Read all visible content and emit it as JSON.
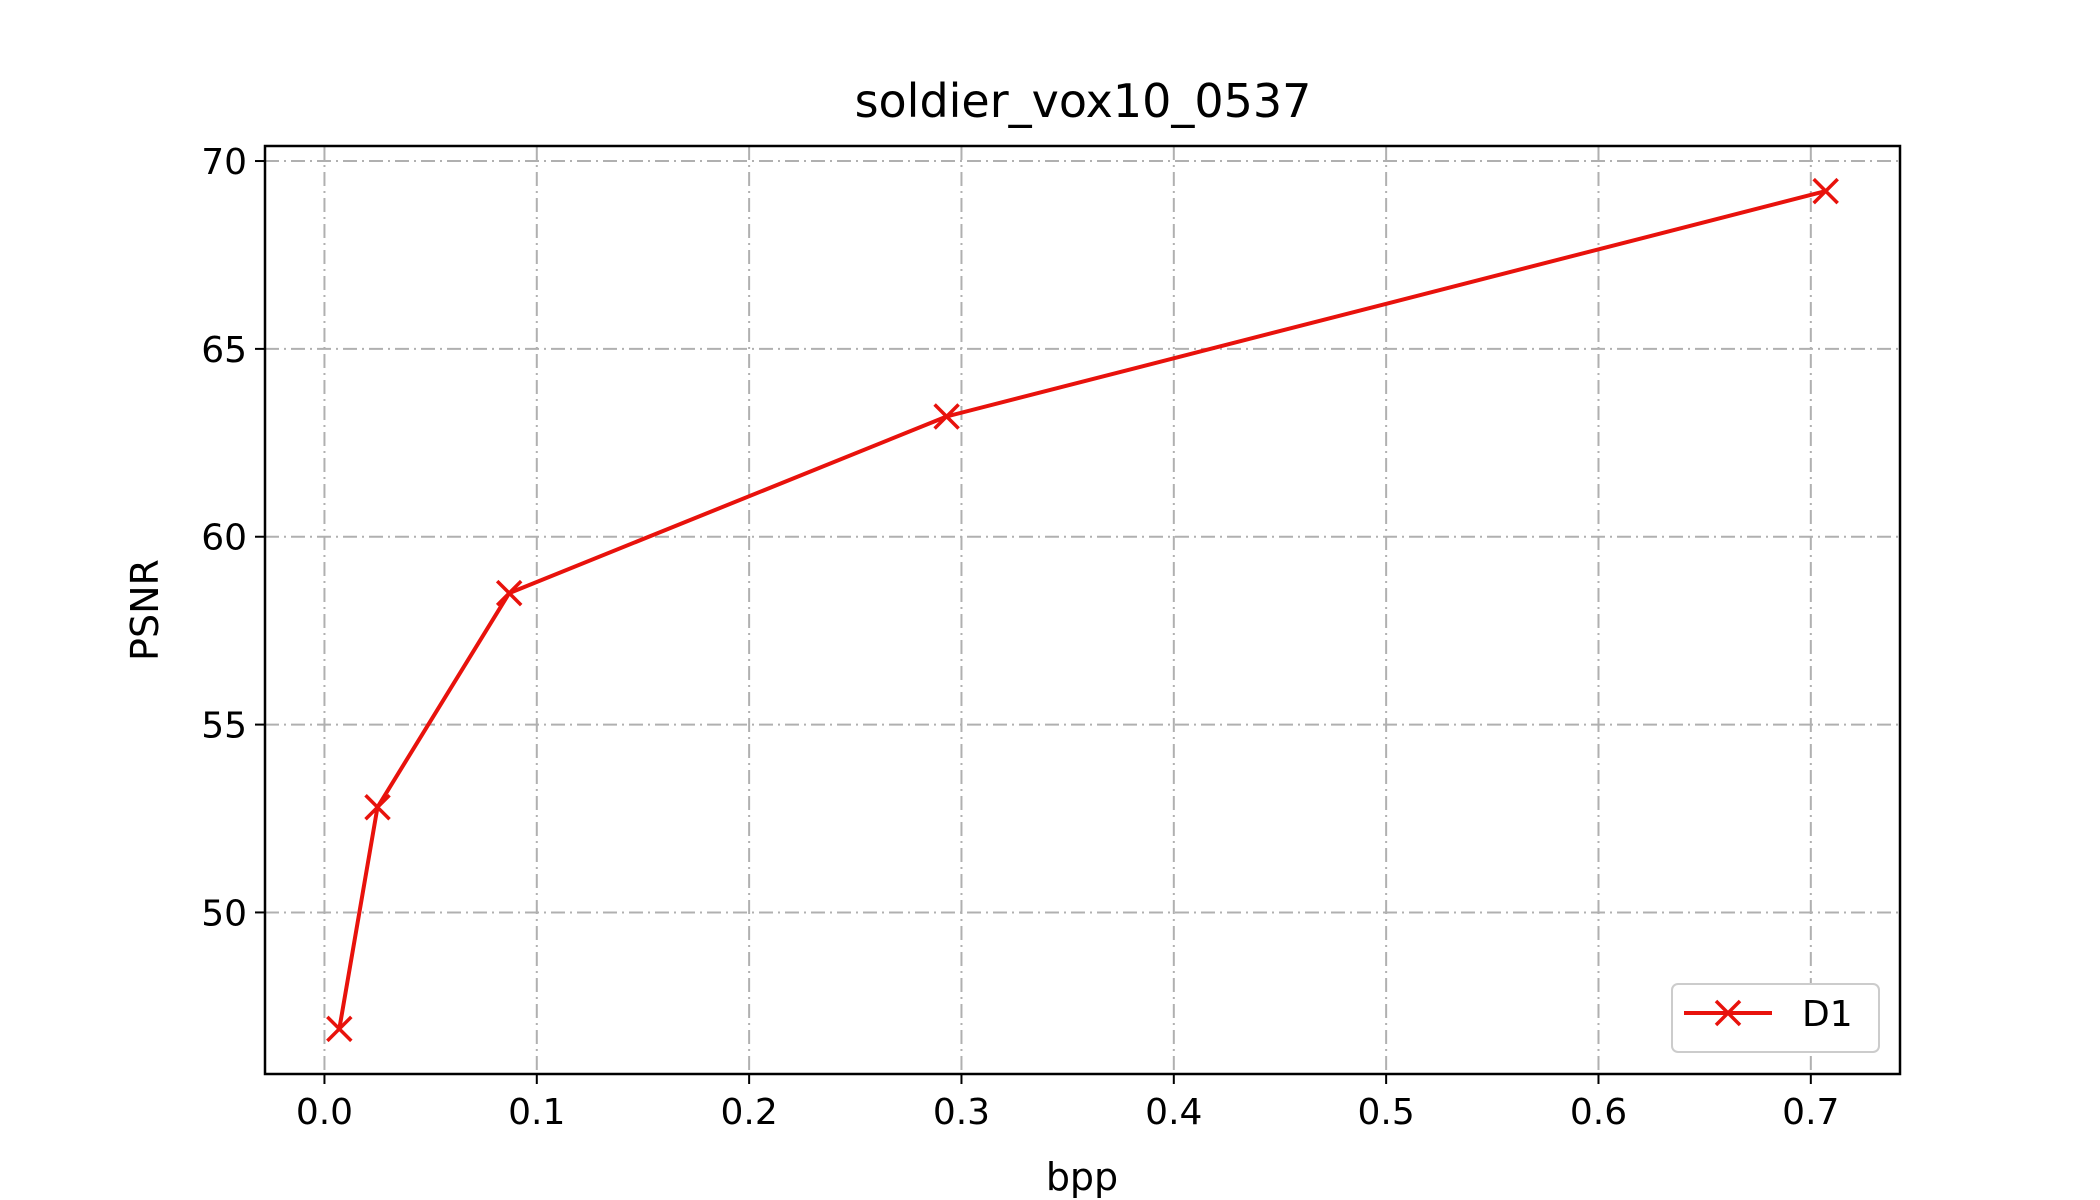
{
  "chart_data": {
    "type": "line",
    "title": "soldier_vox10_0537",
    "xlabel": "bpp",
    "ylabel": "PSNR",
    "xlim": [
      -0.028,
      0.742
    ],
    "ylim": [
      45.7,
      70.4
    ],
    "x_ticks": [
      0.0,
      0.1,
      0.2,
      0.3,
      0.4,
      0.5,
      0.6,
      0.7
    ],
    "x_tick_labels": [
      "0.0",
      "0.1",
      "0.2",
      "0.3",
      "0.4",
      "0.5",
      "0.6",
      "0.7"
    ],
    "y_ticks": [
      50,
      55,
      60,
      65,
      70
    ],
    "y_tick_labels": [
      "50",
      "55",
      "60",
      "65",
      "70"
    ],
    "grid": true,
    "legend_position": "lower-right",
    "series": [
      {
        "name": "D1",
        "color": "#e8120c",
        "marker": "x",
        "x": [
          0.007,
          0.025,
          0.087,
          0.293,
          0.707
        ],
        "y": [
          46.9,
          52.8,
          58.5,
          63.2,
          69.2
        ]
      }
    ]
  }
}
